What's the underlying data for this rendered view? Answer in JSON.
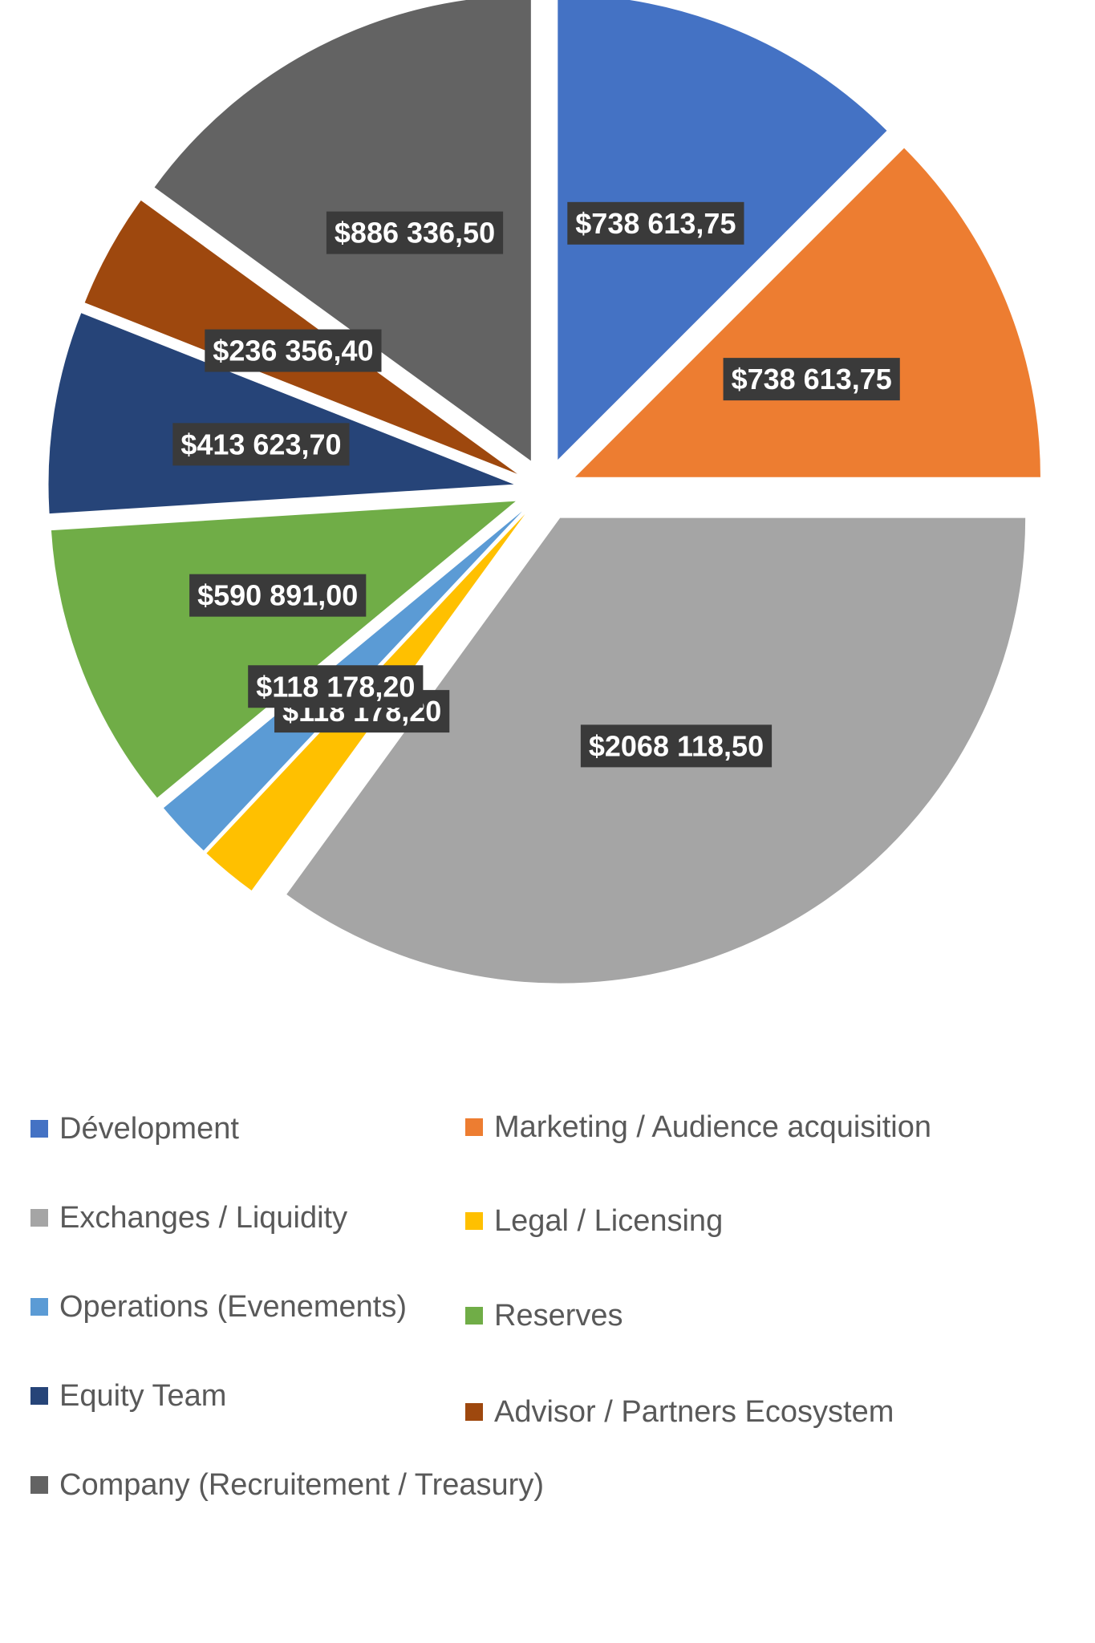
{
  "chart_data": {
    "type": "pie",
    "exploded": true,
    "legend_position": "bottom",
    "slices": [
      {
        "name": "Dévelopment",
        "value": 738613.75,
        "label": "$738 613,75",
        "color": "#4472C4"
      },
      {
        "name": "Marketing / Audience acquisition",
        "value": 738613.75,
        "label": "$738 613,75",
        "color": "#ED7D31"
      },
      {
        "name": "Exchanges / Liquidity",
        "value": 2068118.5,
        "label": "$2068 118,50",
        "color": "#A5A5A5"
      },
      {
        "name": "Legal / Licensing",
        "value": 118178.2,
        "label": "$118 178,20",
        "color": "#FFC000"
      },
      {
        "name": "Operations (Evenements)",
        "value": 118178.2,
        "label": "$118 178,20",
        "color": "#5B9BD5"
      },
      {
        "name": "Reserves",
        "value": 590891.0,
        "label": "$590 891,00",
        "color": "#70AD47"
      },
      {
        "name": "Equity Team",
        "value": 413623.7,
        "label": "$413 623,70",
        "color": "#264478"
      },
      {
        "name": "Advisor / Partners Ecosystem",
        "value": 236356.4,
        "label": "$236 356,40",
        "color": "#9E480E"
      },
      {
        "name": "Company (Recruitement / Treasury)",
        "value": 886336.5,
        "label": "$886 336,50",
        "color": "#636363"
      }
    ]
  },
  "legend": {
    "items": [
      {
        "label": "Dévelopment",
        "color": "#4472C4"
      },
      {
        "label": "Marketing / Audience acquisition",
        "color": "#ED7D31"
      },
      {
        "label": "Exchanges / Liquidity",
        "color": "#A5A5A5"
      },
      {
        "label": "Legal / Licensing",
        "color": "#FFC000"
      },
      {
        "label": "Operations (Evenements)",
        "color": "#5B9BD5"
      },
      {
        "label": "Reserves",
        "color": "#70AD47"
      },
      {
        "label": "Equity Team",
        "color": "#264478"
      },
      {
        "label": "Advisor / Partners Ecosystem",
        "color": "#9E480E"
      },
      {
        "label": "Company (Recruitement / Treasury)",
        "color": "#636363"
      }
    ]
  }
}
